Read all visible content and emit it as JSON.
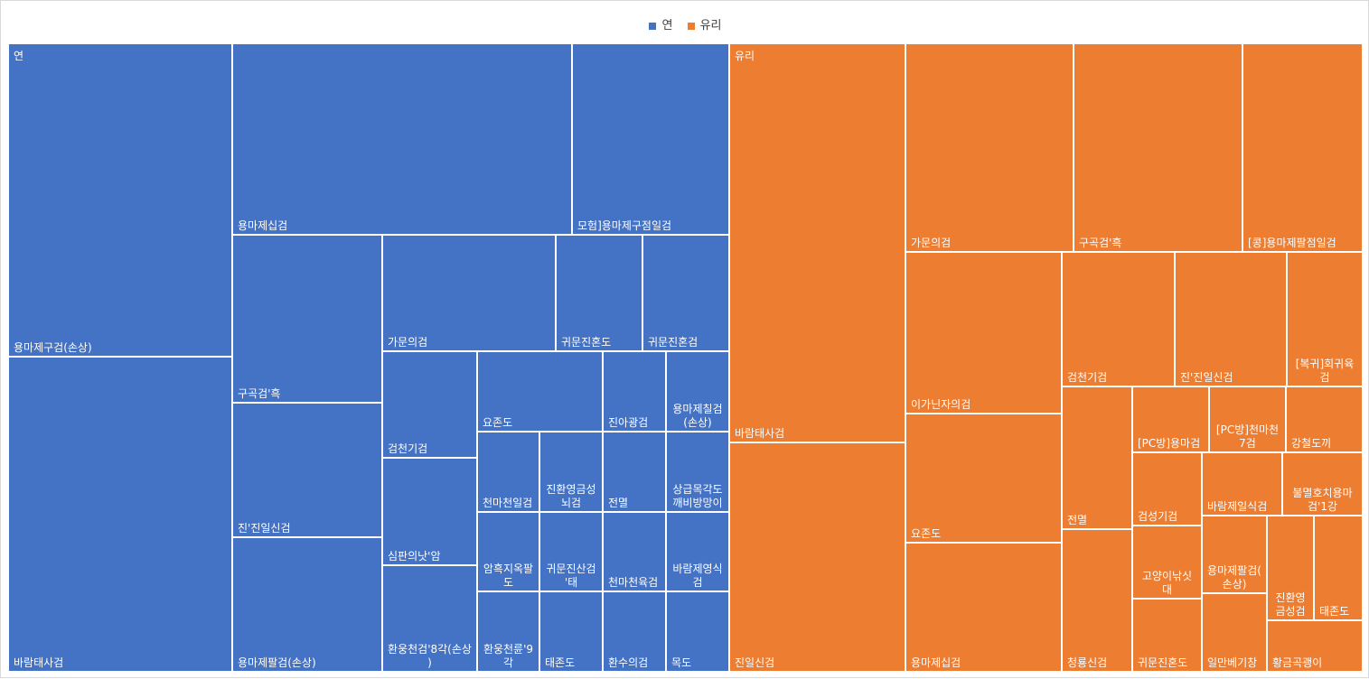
{
  "chart_data": {
    "type": "treemap",
    "legend": {
      "placement": "top-center",
      "entries": [
        "연",
        "유리"
      ]
    },
    "series": [
      {
        "name": "연",
        "color": "#4472C4",
        "items": [
          {
            "name": "용마제구검(손상)",
            "value": 1660
          },
          {
            "name": "바람태사검",
            "value": 1660
          },
          {
            "name": "용마제십검",
            "value": 1568
          },
          {
            "name": "모험]용마제구점일검",
            "value": 727
          },
          {
            "name": "구곡검'흑",
            "value": 601
          },
          {
            "name": "진'진일신검",
            "value": 481
          },
          {
            "name": "용마제팔검(손상)",
            "value": 481
          },
          {
            "name": "가문의검",
            "value": 480
          },
          {
            "name": "귀문진혼도",
            "value": 239
          },
          {
            "name": "귀문진혼검",
            "value": 239
          },
          {
            "name": "검천기검",
            "value": 237
          },
          {
            "name": "심판의낫'암",
            "value": 237
          },
          {
            "name": "환웅천검'8각(손상)",
            "value": 237
          },
          {
            "name": "요존도",
            "value": 237
          },
          {
            "name": "진아광검",
            "value": 119
          },
          {
            "name": "용마제칠검(손상)",
            "value": 119
          },
          {
            "name": "천마천일검",
            "value": 119
          },
          {
            "name": "진환영금성뇌검",
            "value": 119
          },
          {
            "name": "전멸",
            "value": 119
          },
          {
            "name": "상급목각도깨비방망이",
            "value": 119
          },
          {
            "name": "암흑지옥팔도",
            "value": 119
          },
          {
            "name": "귀문진산검'태",
            "value": 119
          },
          {
            "name": "천마천육검",
            "value": 119
          },
          {
            "name": "바람제영식검",
            "value": 119
          },
          {
            "name": "환웅천륜'9각",
            "value": 119
          },
          {
            "name": "태존도",
            "value": 119
          },
          {
            "name": "환수의검",
            "value": 119
          },
          {
            "name": "목도",
            "value": 119
          }
        ]
      },
      {
        "name": "유리",
        "color": "#ED7D31",
        "items": [
          {
            "name": "바람태사검",
            "value": 2375
          },
          {
            "name": "진일신검",
            "value": 1351
          },
          {
            "name": "가문의검",
            "value": 1039
          },
          {
            "name": "구곡검'흑",
            "value": 1039
          },
          {
            "name": "[콩]용마제팔점일검",
            "value": 739
          },
          {
            "name": "이가닌자의검",
            "value": 851
          },
          {
            "name": "요존도",
            "value": 686
          },
          {
            "name": "용마제십검",
            "value": 686
          },
          {
            "name": "검천기검",
            "value": 441
          },
          {
            "name": "진'진일신검",
            "value": 441
          },
          {
            "name": "[복귀]회귀육검",
            "value": 389
          },
          {
            "name": "전멸",
            "value": 414
          },
          {
            "name": "청룡신검",
            "value": 414
          },
          {
            "name": "[PC방]용마검",
            "value": 185
          },
          {
            "name": "[PC방]천마천7검",
            "value": 185
          },
          {
            "name": "강철도끼",
            "value": 185
          },
          {
            "name": "검성기검",
            "value": 178
          },
          {
            "name": "바람제일식검",
            "value": 178
          },
          {
            "name": "불멸호치용마검'1강",
            "value": 178
          },
          {
            "name": "고양이낚싯대",
            "value": 178
          },
          {
            "name": "용마제팔검(손상)",
            "value": 178
          },
          {
            "name": "진환영금성검",
            "value": 178
          },
          {
            "name": "태존도",
            "value": 178
          },
          {
            "name": "귀문진혼도",
            "value": 178
          },
          {
            "name": "일만베기창",
            "value": 178
          },
          {
            "name": "황금곡괭이",
            "value": 89
          }
        ]
      }
    ]
  }
}
